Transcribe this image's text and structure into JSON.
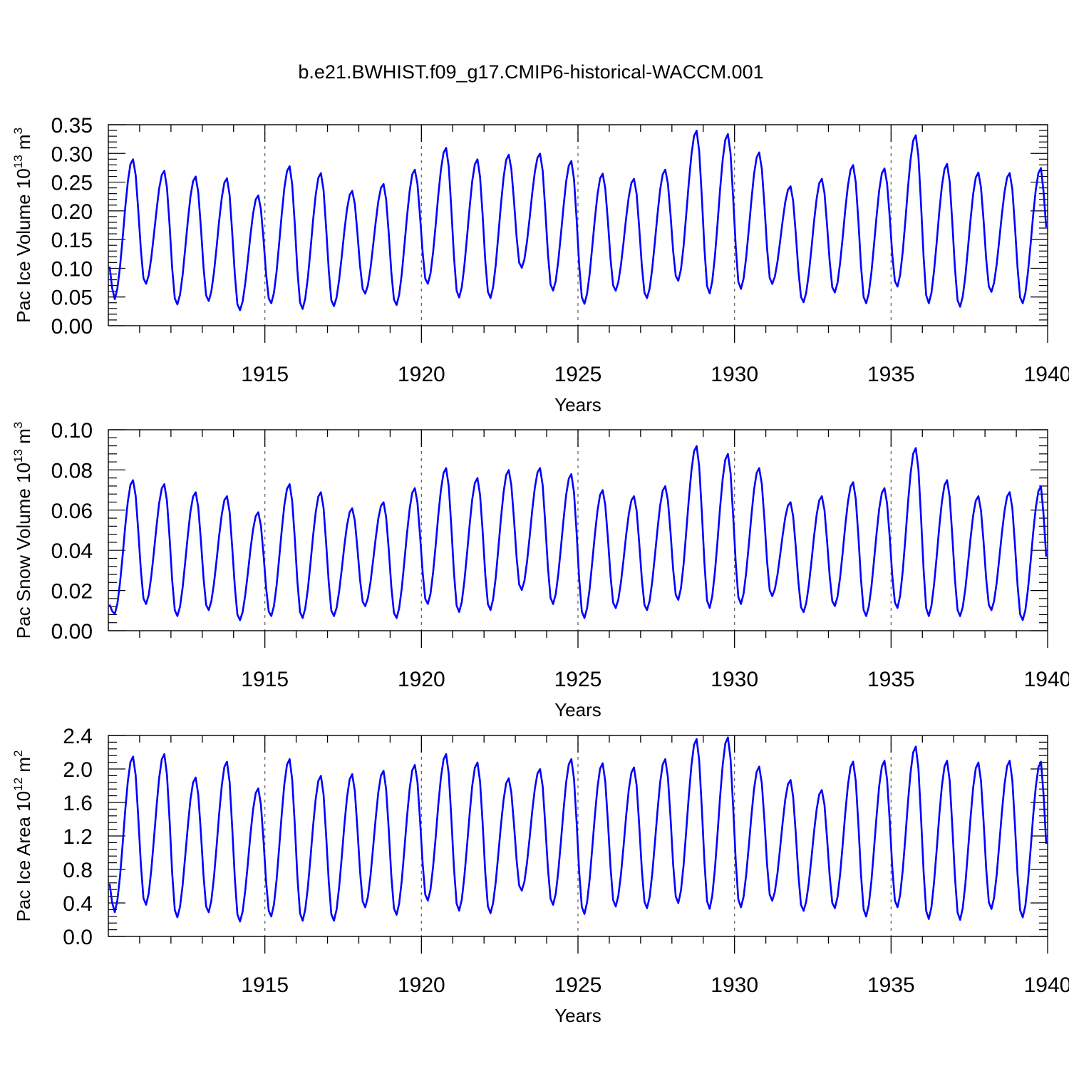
{
  "title": "b.e21.BWHIST.f09_g17.CMIP6-historical-WACCM.001",
  "colors": {
    "series": "#0000ff",
    "axis": "#000000",
    "grid": "#666666"
  },
  "chart_data": [
    {
      "type": "line",
      "title": "",
      "xlabel": "Years",
      "ylabel": "Pac Ice Volume 10",
      "ylabel_exp": "13",
      "ylabel_unit": " m",
      "ylabel_unit_exp": "3",
      "xlim": [
        1910,
        1940
      ],
      "ylim": [
        0,
        0.35
      ],
      "x_ticks": [
        1915,
        1920,
        1925,
        1930,
        1935,
        1940
      ],
      "x_tick_labels": [
        "1915",
        "1920",
        "1925",
        "1930",
        "1935",
        "1940"
      ],
      "y_ticks": [
        0.0,
        0.05,
        0.1,
        0.15,
        0.2,
        0.25,
        0.3,
        0.35
      ],
      "y_tick_labels": [
        "0.00",
        "0.05",
        "0.10",
        "0.15",
        "0.20",
        "0.25",
        "0.30",
        "0.35"
      ],
      "grid": "vertical dashed at major x ticks",
      "series": [
        {
          "x_start": 1910.04,
          "x_step": 0.08333,
          "peaks": [
            0.29,
            0.27,
            0.26,
            0.257,
            0.227,
            0.278,
            0.266,
            0.235,
            0.247,
            0.272,
            0.31,
            0.29,
            0.298,
            0.3,
            0.287,
            0.265,
            0.256,
            0.272,
            0.34,
            0.334,
            0.302,
            0.243,
            0.256,
            0.28,
            0.274,
            0.332,
            0.282,
            0.267,
            0.266,
            0.275
          ],
          "troughs": [
            0.045,
            0.072,
            0.036,
            0.042,
            0.026,
            0.038,
            0.028,
            0.033,
            0.055,
            0.035,
            0.072,
            0.048,
            0.047,
            0.1,
            0.06,
            0.037,
            0.06,
            0.047,
            0.077,
            0.055,
            0.063,
            0.072,
            0.04,
            0.057,
            0.038,
            0.067,
            0.038,
            0.032,
            0.058,
            0.038
          ],
          "first_value": 0.103,
          "last_value": 0.16
        }
      ]
    },
    {
      "type": "line",
      "title": "",
      "xlabel": "Years",
      "ylabel": "Pac Snow Volume 10",
      "ylabel_exp": "13",
      "ylabel_unit": " m",
      "ylabel_unit_exp": "3",
      "xlim": [
        1910,
        1940
      ],
      "ylim": [
        0,
        0.1
      ],
      "x_ticks": [
        1915,
        1920,
        1925,
        1930,
        1935,
        1940
      ],
      "x_tick_labels": [
        "1915",
        "1920",
        "1925",
        "1930",
        "1935",
        "1940"
      ],
      "y_ticks": [
        0.0,
        0.02,
        0.04,
        0.06,
        0.08,
        0.1
      ],
      "y_tick_labels": [
        "0.00",
        "0.02",
        "0.04",
        "0.06",
        "0.08",
        "0.10"
      ],
      "grid": "vertical dashed at major x ticks",
      "series": [
        {
          "x_start": 1910.04,
          "x_step": 0.08333,
          "peaks": [
            0.075,
            0.073,
            0.069,
            0.067,
            0.059,
            0.073,
            0.069,
            0.061,
            0.064,
            0.071,
            0.081,
            0.076,
            0.08,
            0.081,
            0.078,
            0.07,
            0.067,
            0.072,
            0.092,
            0.088,
            0.081,
            0.064,
            0.067,
            0.074,
            0.071,
            0.091,
            0.075,
            0.067,
            0.069,
            0.072
          ],
          "troughs": [
            0.008,
            0.013,
            0.007,
            0.01,
            0.005,
            0.007,
            0.006,
            0.007,
            0.012,
            0.006,
            0.013,
            0.009,
            0.01,
            0.02,
            0.013,
            0.006,
            0.011,
            0.01,
            0.015,
            0.011,
            0.013,
            0.017,
            0.009,
            0.012,
            0.007,
            0.011,
            0.007,
            0.007,
            0.01,
            0.005
          ],
          "first_value": 0.013,
          "last_value": 0.033
        }
      ]
    },
    {
      "type": "line",
      "title": "",
      "xlabel": "Years",
      "ylabel": "Pac Ice Area 10",
      "ylabel_exp": "12",
      "ylabel_unit": " m",
      "ylabel_unit_exp": "2",
      "xlim": [
        1910,
        1940
      ],
      "ylim": [
        0,
        2.4
      ],
      "x_ticks": [
        1915,
        1920,
        1925,
        1930,
        1935,
        1940
      ],
      "x_tick_labels": [
        "1915",
        "1920",
        "1925",
        "1930",
        "1935",
        "1940"
      ],
      "y_ticks": [
        0.0,
        0.4,
        0.8,
        1.2,
        1.6,
        2.0,
        2.4
      ],
      "y_tick_labels": [
        "0.0",
        "0.4",
        "0.8",
        "1.2",
        "1.6",
        "2.0",
        "2.4"
      ],
      "grid": "vertical dashed at major x ticks",
      "series": [
        {
          "x_start": 1910.04,
          "x_step": 0.08333,
          "peaks": [
            2.15,
            2.18,
            1.9,
            2.09,
            1.77,
            2.12,
            1.92,
            1.94,
            1.98,
            2.05,
            2.18,
            2.08,
            1.89,
            2.0,
            2.12,
            2.07,
            2.02,
            2.12,
            2.36,
            2.38,
            2.03,
            1.87,
            1.75,
            2.09,
            2.1,
            2.27,
            2.1,
            2.08,
            2.1,
            2.09
          ],
          "troughs": [
            0.28,
            0.37,
            0.22,
            0.28,
            0.17,
            0.23,
            0.18,
            0.18,
            0.34,
            0.25,
            0.42,
            0.3,
            0.27,
            0.54,
            0.37,
            0.26,
            0.35,
            0.33,
            0.39,
            0.32,
            0.34,
            0.42,
            0.3,
            0.33,
            0.23,
            0.34,
            0.2,
            0.19,
            0.32,
            0.22
          ],
          "first_value": 0.63,
          "last_value": 1.0
        }
      ]
    }
  ]
}
